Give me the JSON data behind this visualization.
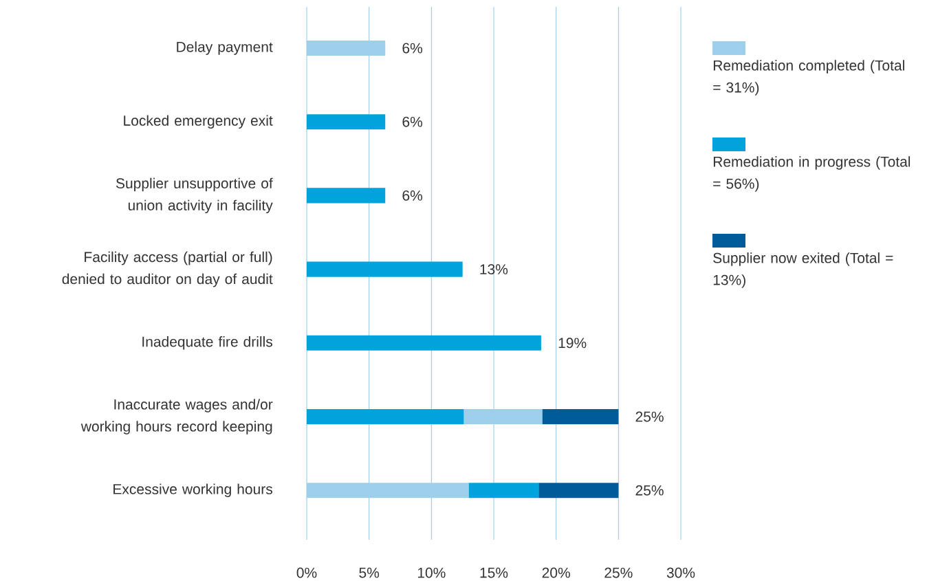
{
  "chart_data": {
    "type": "bar",
    "orientation": "horizontal",
    "categories": [
      "Delay payment",
      "Locked emergency exit",
      "Supplier unsupportive of union activity in facility",
      "Facility access (partial or full) denied to auditor on day of audit",
      "Inadequate fire drills",
      "Inaccurate wages and/or working hours record keeping",
      "Excessive working hours"
    ],
    "series": [
      {
        "name": "Remediation completed (Total = 31%)",
        "color": "#9dcfea",
        "values": [
          6.3,
          null,
          null,
          null,
          null,
          6.3,
          13.0
        ],
        "base": [
          0,
          null,
          null,
          null,
          null,
          12.6,
          0
        ]
      },
      {
        "name": "Remediation in progress (Total = 56%)",
        "color": "#00a3dc",
        "values": [
          null,
          6.3,
          6.3,
          12.5,
          18.8,
          12.6,
          5.6
        ],
        "base": [
          null,
          0,
          0,
          0,
          0,
          0,
          13.0
        ]
      },
      {
        "name": "Supplier now exited (Total = 13%)",
        "color": "#005b9a",
        "values": [
          null,
          null,
          null,
          null,
          null,
          6.1,
          6.4
        ],
        "base": [
          null,
          null,
          null,
          null,
          null,
          18.9,
          18.6
        ]
      }
    ],
    "totals": [
      "6%",
      "6%",
      "6%",
      "13%",
      "19%",
      "25%",
      "25%"
    ],
    "xlim": [
      0,
      30
    ],
    "xticks": [
      {
        "value": 0,
        "label": "0%"
      },
      {
        "value": 5,
        "label": "5%"
      },
      {
        "value": 10,
        "label": "10%"
      },
      {
        "value": 15,
        "label": "15%"
      },
      {
        "value": 20,
        "label": "20%"
      },
      {
        "value": 25,
        "label": "25%"
      },
      {
        "value": 30,
        "label": "30%"
      }
    ],
    "grid": "x",
    "legend": "right"
  }
}
